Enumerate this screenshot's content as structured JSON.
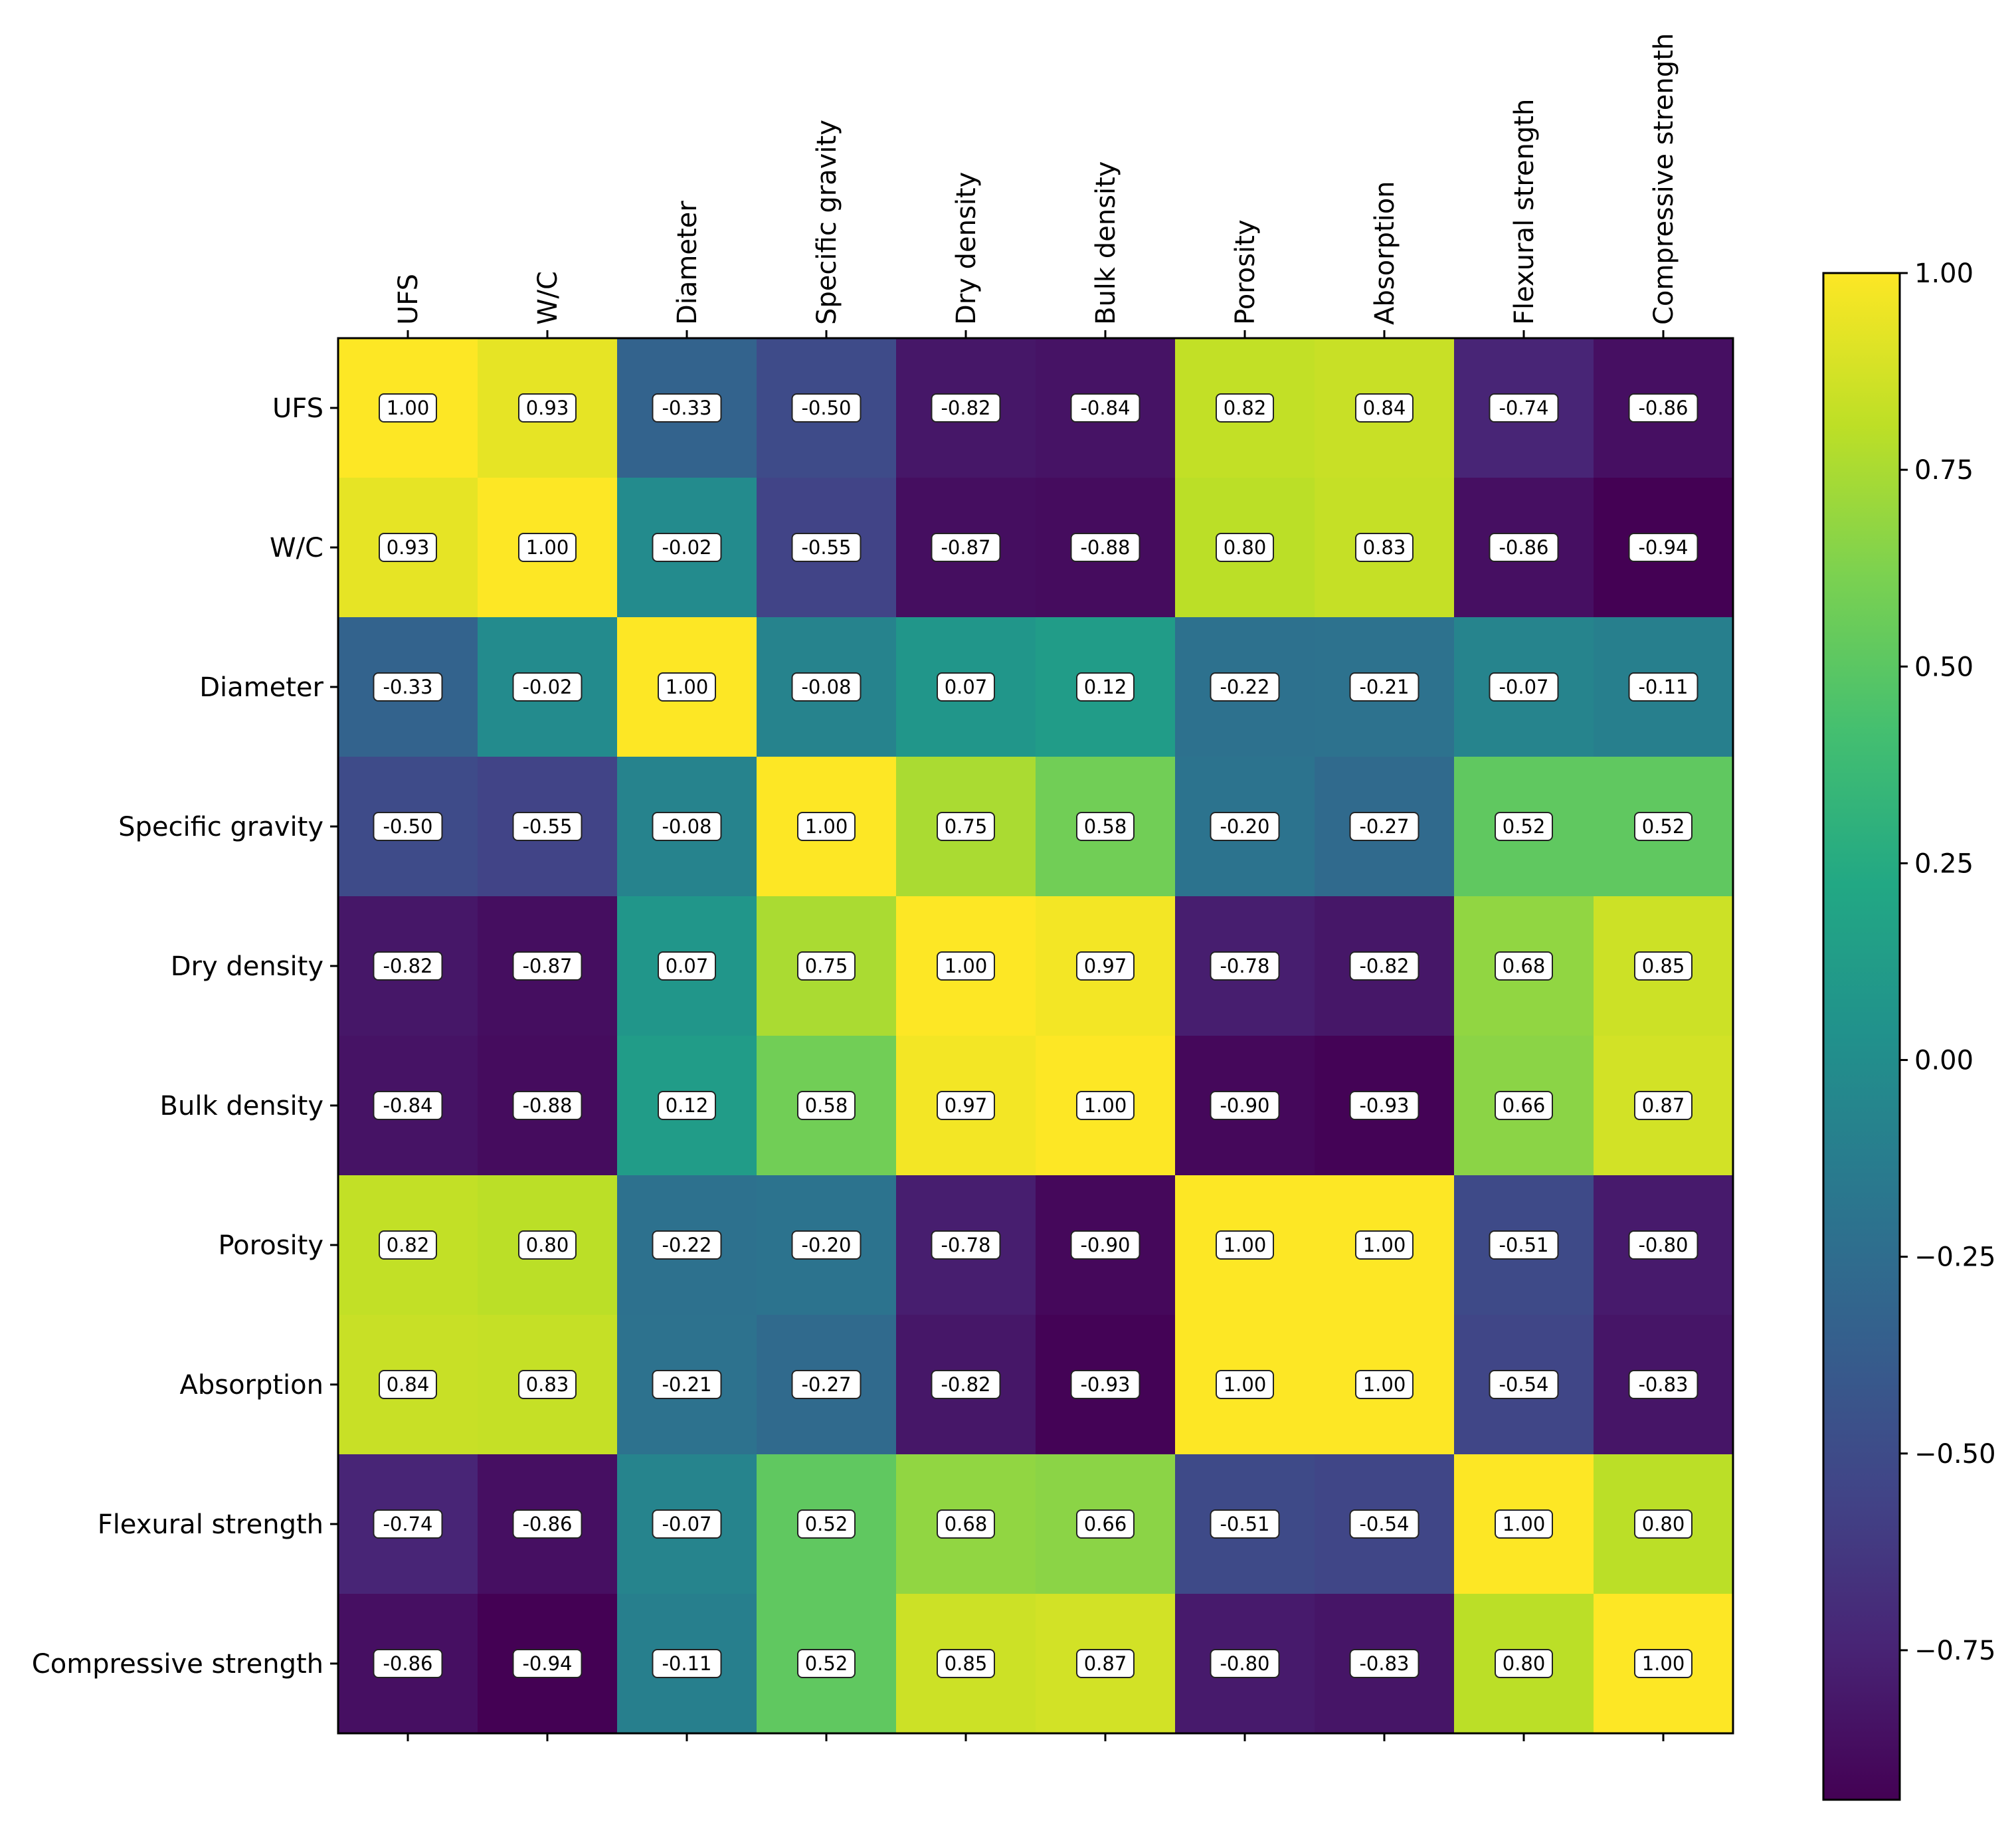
{
  "chart_data": {
    "type": "heatmap",
    "title": "",
    "xlabel": "",
    "ylabel": "",
    "variables": [
      "UFS",
      "W/C",
      "Diameter",
      "Specific gravity",
      "Dry density",
      "Bulk density",
      "Porosity",
      "Absorption",
      "Flexural strength",
      "Compressive strength"
    ],
    "matrix": [
      [
        1.0,
        0.93,
        -0.33,
        -0.5,
        -0.82,
        -0.84,
        0.82,
        0.84,
        -0.74,
        -0.86
      ],
      [
        0.93,
        1.0,
        -0.02,
        -0.55,
        -0.87,
        -0.88,
        0.8,
        0.83,
        -0.86,
        -0.94
      ],
      [
        -0.33,
        -0.02,
        1.0,
        -0.08,
        0.07,
        0.12,
        -0.22,
        -0.21,
        -0.07,
        -0.11
      ],
      [
        -0.5,
        -0.55,
        -0.08,
        1.0,
        0.75,
        0.58,
        -0.2,
        -0.27,
        0.52,
        0.52
      ],
      [
        -0.82,
        -0.87,
        0.07,
        0.75,
        1.0,
        0.97,
        -0.78,
        -0.82,
        0.68,
        0.85
      ],
      [
        -0.84,
        -0.88,
        0.12,
        0.58,
        0.97,
        1.0,
        -0.9,
        -0.93,
        0.66,
        0.87
      ],
      [
        0.82,
        0.8,
        -0.22,
        -0.2,
        -0.78,
        -0.9,
        1.0,
        1.0,
        -0.51,
        -0.8
      ],
      [
        0.84,
        0.83,
        -0.21,
        -0.27,
        -0.82,
        -0.93,
        1.0,
        1.0,
        -0.54,
        -0.83
      ],
      [
        -0.74,
        -0.86,
        -0.07,
        0.52,
        0.68,
        0.66,
        -0.51,
        -0.54,
        1.0,
        0.8
      ],
      [
        -0.86,
        -0.94,
        -0.11,
        0.52,
        0.85,
        0.87,
        -0.8,
        -0.83,
        0.8,
        1.0
      ]
    ],
    "colormap": "viridis",
    "vmin": -0.94,
    "vmax": 1.0,
    "colorbar": {
      "ticks": [
        1.0,
        0.75,
        0.5,
        0.25,
        0.0,
        -0.25,
        -0.5,
        -0.75
      ],
      "tick_labels": [
        "1.00",
        "0.75",
        "0.50",
        "0.25",
        "0.00",
        "−0.25",
        "−0.50",
        "−0.75"
      ],
      "placement": "right"
    },
    "x_tick_position": "top",
    "value_format": "2 decimals"
  }
}
